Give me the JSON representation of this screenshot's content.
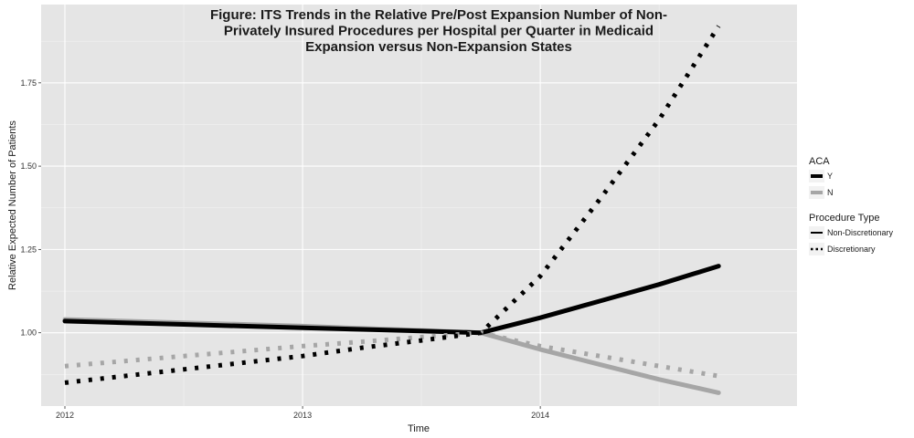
{
  "chart_data": {
    "type": "line",
    "title_lines": [
      "Figure: ITS Trends in the Relative Pre/Post Expansion Number of Non-",
      "Privately Insured Procedures per Hospital per Quarter in Medicaid",
      "Expansion versus Non-Expansion States"
    ],
    "xlabel": "Time",
    "ylabel": "Relative Expected Number of Patients",
    "x_tick_labels": [
      "2012",
      "2013",
      "2014"
    ],
    "y_tick_labels": [
      "1.00",
      "1.25",
      "1.50",
      "1.75"
    ],
    "xlim": [
      2011.9,
      2015.08
    ],
    "ylim": [
      0.78,
      1.985
    ],
    "background": "#e5e5e5",
    "grid": true,
    "legend": {
      "placement": "right",
      "groups": [
        {
          "title": "ACA",
          "items": [
            {
              "label": "Y",
              "color": "#000000"
            },
            {
              "label": "N",
              "color": "#a6a6a6"
            }
          ]
        },
        {
          "title": "Procedure Type",
          "items": [
            {
              "label": "Non-Discretionary",
              "style": "solid"
            },
            {
              "label": "Discretionary",
              "style": "dotted"
            }
          ]
        }
      ]
    },
    "series": [
      {
        "aca": "Y",
        "procedure": "Non-Discretionary",
        "color": "#000000",
        "style": "solid",
        "x": [
          2012.0,
          2012.25,
          2012.5,
          2012.75,
          2013.0,
          2013.25,
          2013.5,
          2013.75,
          2014.0,
          2014.25,
          2014.5,
          2014.75
        ],
        "y": [
          1.035,
          1.03,
          1.025,
          1.02,
          1.015,
          1.01,
          1.005,
          1.0,
          1.045,
          1.095,
          1.145,
          1.2
        ]
      },
      {
        "aca": "N",
        "procedure": "Non-Discretionary",
        "color": "#a6a6a6",
        "style": "solid",
        "x": [
          2012.0,
          2012.25,
          2012.5,
          2012.75,
          2013.0,
          2013.25,
          2013.5,
          2013.75,
          2014.0,
          2014.25,
          2014.5,
          2014.75
        ],
        "y": [
          1.04,
          1.035,
          1.03,
          1.025,
          1.02,
          1.013,
          1.007,
          1.0,
          0.95,
          0.905,
          0.86,
          0.82
        ]
      },
      {
        "aca": "Y",
        "procedure": "Discretionary",
        "color": "#000000",
        "style": "dotted",
        "x": [
          2012.0,
          2012.25,
          2012.5,
          2012.75,
          2013.0,
          2013.25,
          2013.5,
          2013.75,
          2014.0,
          2014.25,
          2014.5,
          2014.75
        ],
        "y": [
          0.85,
          0.87,
          0.89,
          0.91,
          0.93,
          0.955,
          0.977,
          1.0,
          1.17,
          1.4,
          1.64,
          1.92
        ]
      },
      {
        "aca": "N",
        "procedure": "Discretionary",
        "color": "#a6a6a6",
        "style": "dotted",
        "x": [
          2012.0,
          2012.25,
          2012.5,
          2012.75,
          2013.0,
          2013.25,
          2013.5,
          2013.75,
          2014.0,
          2014.25,
          2014.5,
          2014.75
        ],
        "y": [
          0.9,
          0.915,
          0.93,
          0.945,
          0.96,
          0.973,
          0.987,
          1.0,
          0.96,
          0.93,
          0.9,
          0.87
        ]
      }
    ]
  }
}
